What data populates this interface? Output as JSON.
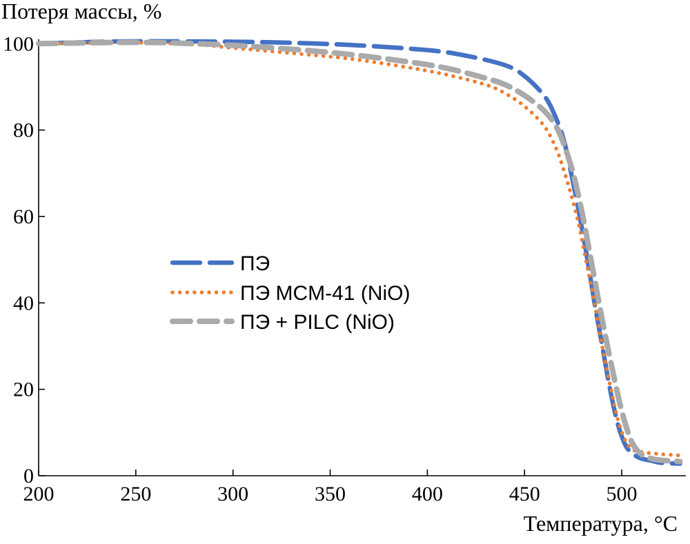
{
  "chart_data": {
    "type": "line",
    "ylabel": "Потеря массы, %",
    "xlabel": "Температура, °C",
    "xlim": [
      200,
      533
    ],
    "ylim": [
      0,
      101
    ],
    "xticks": [
      200,
      250,
      300,
      350,
      400,
      450,
      500
    ],
    "yticks": [
      0,
      20,
      40,
      60,
      80,
      100
    ],
    "xtick_labels": [
      "200",
      "250",
      "300",
      "350",
      "400",
      "450",
      "500"
    ],
    "ytick_labels": [
      "0",
      "20",
      "40",
      "60",
      "80",
      "100"
    ],
    "grid": false,
    "legend_position": "center-left",
    "series": [
      {
        "name": "ПЭ",
        "color": "#4472C4",
        "style": "long-dash",
        "x": [
          200,
          240,
          280,
          320,
          360,
          400,
          420,
          440,
          450,
          460,
          465,
          470,
          474,
          478,
          482,
          486,
          490,
          494,
          498,
          502,
          506,
          510,
          515,
          520,
          530
        ],
        "y": [
          100,
          100.5,
          100.5,
          100.3,
          99.7,
          98.5,
          97.2,
          95,
          92.5,
          88,
          84,
          78,
          70,
          61,
          51,
          40,
          30,
          20,
          12,
          7,
          5,
          4,
          3.5,
          3,
          2.8
        ]
      },
      {
        "name": "ПЭ MCM-41 (NiO)",
        "color": "#ED7D31",
        "style": "dotted",
        "x": [
          200,
          250,
          280,
          300,
          330,
          360,
          390,
          410,
          430,
          440,
          450,
          460,
          466,
          470,
          474,
          478,
          482,
          486,
          490,
          494,
          498,
          502,
          506,
          510,
          520,
          530
        ],
        "y": [
          100,
          100.2,
          99.8,
          99,
          97.8,
          96.5,
          94.5,
          92.8,
          90.5,
          88.5,
          85.5,
          81,
          76,
          71,
          65,
          58,
          49,
          40,
          30,
          21,
          13,
          8,
          6,
          5.5,
          5,
          4.7
        ]
      },
      {
        "name": "ПЭ + PILC (NiO)",
        "color": "#AAAAAA",
        "style": "medium-dash",
        "x": [
          200,
          250,
          280,
          300,
          330,
          360,
          390,
          410,
          430,
          440,
          450,
          460,
          466,
          470,
          475,
          480,
          485,
          490,
          495,
          500,
          505,
          510,
          515,
          520,
          530
        ],
        "y": [
          100,
          100.3,
          100,
          99.6,
          98.7,
          97.5,
          95.8,
          94.3,
          92,
          90.5,
          88,
          84.5,
          81,
          77,
          70,
          60,
          48,
          36,
          25,
          15,
          8,
          5,
          4,
          3.6,
          3.3
        ]
      }
    ]
  }
}
